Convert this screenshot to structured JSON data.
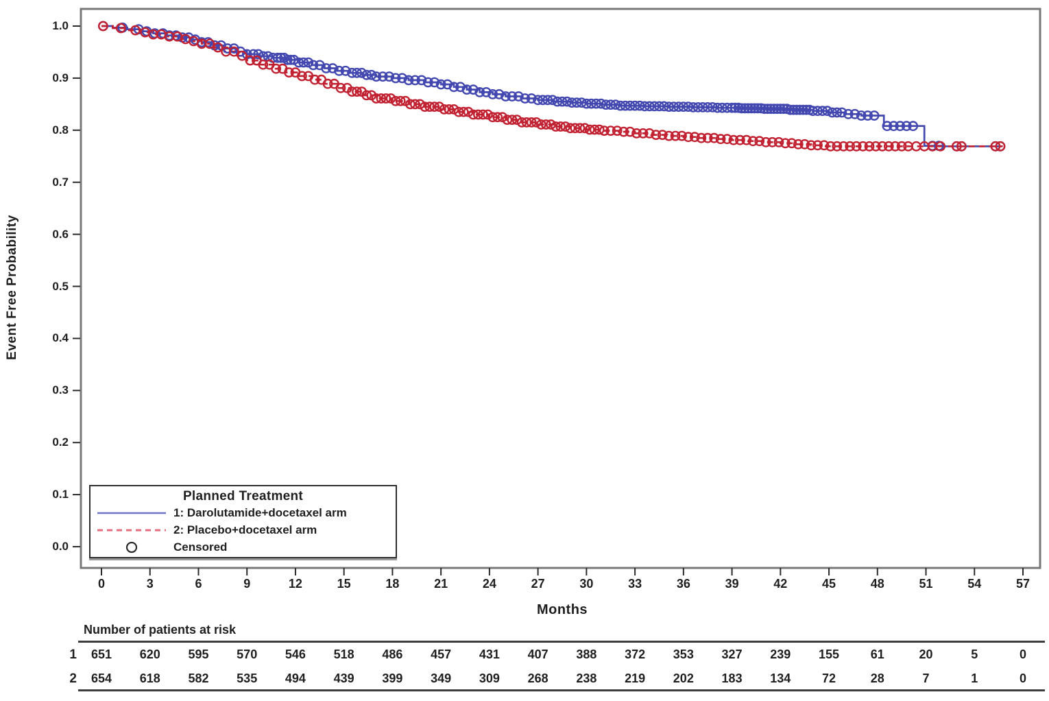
{
  "figure": {
    "y_axis_title": "Event Free Probability",
    "x_axis_title": "Months"
  },
  "legend": {
    "title": "Planned Treatment",
    "items": [
      {
        "label": "1: Darolutamide+docetaxel arm",
        "style": "solid-line",
        "swatch_color": "#6f73c4"
      },
      {
        "label": "2: Placebo+docetaxel arm",
        "style": "dashed-line",
        "swatch_color": "#e4707f"
      },
      {
        "label": "Censored",
        "style": "open-circle",
        "swatch_color": "#2a2a2a"
      }
    ]
  },
  "chart_data": {
    "type": "line",
    "variant": "kaplan-meier-step",
    "title": "",
    "xlabel": "Months",
    "ylabel": "Event Free Probability",
    "xlim": [
      0,
      57
    ],
    "ylim": [
      0.0,
      1.0
    ],
    "x_ticks": [
      0,
      3,
      6,
      9,
      12,
      15,
      18,
      21,
      24,
      27,
      30,
      33,
      36,
      39,
      42,
      45,
      48,
      51,
      54,
      57
    ],
    "y_ticks": [
      0.0,
      0.1,
      0.2,
      0.3,
      0.4,
      0.5,
      0.6,
      0.7,
      0.8,
      0.9,
      1.0
    ],
    "grid": false,
    "legend_position": "inside-bottom-left",
    "series": [
      {
        "name": "1: Darolutamide+docetaxel arm",
        "color": "#4348b0",
        "line": "solid",
        "steps": [
          [
            0,
            1.0
          ],
          [
            0.7,
            0.997
          ],
          [
            1.6,
            0.994
          ],
          [
            2.4,
            0.99
          ],
          [
            3.2,
            0.986
          ],
          [
            4.0,
            0.982
          ],
          [
            4.8,
            0.978
          ],
          [
            5.5,
            0.974
          ],
          [
            6.2,
            0.969
          ],
          [
            6.9,
            0.963
          ],
          [
            7.6,
            0.957
          ],
          [
            8.3,
            0.951
          ],
          [
            9.0,
            0.946
          ],
          [
            9.8,
            0.942
          ],
          [
            10.6,
            0.939
          ],
          [
            11.4,
            0.935
          ],
          [
            12.2,
            0.93
          ],
          [
            13.0,
            0.925
          ],
          [
            13.8,
            0.919
          ],
          [
            14.6,
            0.914
          ],
          [
            15.4,
            0.91
          ],
          [
            16.2,
            0.906
          ],
          [
            17.0,
            0.903
          ],
          [
            18.0,
            0.9
          ],
          [
            19.0,
            0.896
          ],
          [
            20.0,
            0.892
          ],
          [
            21.0,
            0.888
          ],
          [
            21.8,
            0.883
          ],
          [
            22.6,
            0.878
          ],
          [
            23.4,
            0.873
          ],
          [
            24.2,
            0.869
          ],
          [
            25.0,
            0.865
          ],
          [
            26.0,
            0.861
          ],
          [
            27.0,
            0.858
          ],
          [
            28.0,
            0.855
          ],
          [
            29.0,
            0.853
          ],
          [
            30.0,
            0.851
          ],
          [
            31.0,
            0.849
          ],
          [
            32.0,
            0.847
          ],
          [
            33.5,
            0.846
          ],
          [
            35.0,
            0.845
          ],
          [
            36.5,
            0.844
          ],
          [
            38.0,
            0.843
          ],
          [
            39.5,
            0.842
          ],
          [
            41.0,
            0.841
          ],
          [
            42.5,
            0.839
          ],
          [
            44.0,
            0.837
          ],
          [
            45.0,
            0.834
          ],
          [
            46.0,
            0.831
          ],
          [
            47.0,
            0.828
          ],
          [
            48.4,
            0.808
          ],
          [
            50.9,
            0.77
          ],
          [
            52.0,
            0.769
          ],
          [
            55.7,
            0.768
          ]
        ],
        "censor_times": [
          0.1,
          1.3,
          2.3,
          2.8,
          3.3,
          3.8,
          4.2,
          4.6,
          5.0,
          5.4,
          5.8,
          6.2,
          6.6,
          7.0,
          7.4,
          7.8,
          8.2,
          8.6,
          9.0,
          9.4,
          9.7,
          10.0,
          10.3,
          10.6,
          10.9,
          11.1,
          11.3,
          11.5,
          11.7,
          11.9,
          12.2,
          12.5,
          12.8,
          13.1,
          13.5,
          13.9,
          14.3,
          14.7,
          15.1,
          15.5,
          15.8,
          16.1,
          16.4,
          16.7,
          17.0,
          17.4,
          17.8,
          18.2,
          18.6,
          19.0,
          19.4,
          19.8,
          20.2,
          20.6,
          21.0,
          21.4,
          21.8,
          22.2,
          22.6,
          23.0,
          23.4,
          23.8,
          24.2,
          24.6,
          25.0,
          25.4,
          25.8,
          26.2,
          26.6,
          27.0,
          27.3,
          27.6,
          27.9,
          28.2,
          28.5,
          28.8,
          29.1,
          29.4,
          29.7,
          30.0,
          30.3,
          30.6,
          30.9,
          31.2,
          31.5,
          31.8,
          32.1,
          32.4,
          32.7,
          33.0,
          33.3,
          33.6,
          33.9,
          34.2,
          34.5,
          34.8,
          35.1,
          35.4,
          35.7,
          36.0,
          36.3,
          36.6,
          36.9,
          37.2,
          37.5,
          37.8,
          38.1,
          38.4,
          38.7,
          39.0,
          39.2,
          39.4,
          39.6,
          39.8,
          40.0,
          40.2,
          40.4,
          40.6,
          40.8,
          41.0,
          41.2,
          41.4,
          41.6,
          41.8,
          42.0,
          42.2,
          42.4,
          42.6,
          42.8,
          43.0,
          43.2,
          43.4,
          43.6,
          43.8,
          44.0,
          44.3,
          44.6,
          44.9,
          45.2,
          45.5,
          45.8,
          46.2,
          46.6,
          47.0,
          47.4,
          47.8,
          48.6,
          49.0,
          49.4,
          49.8,
          50.2,
          51.4,
          51.8,
          52.9,
          53.2,
          55.3,
          55.6
        ]
      },
      {
        "name": "2: Placebo+docetaxel arm",
        "color": "#c12131",
        "line": "dashed",
        "steps": [
          [
            0,
            1.0
          ],
          [
            0.7,
            0.996
          ],
          [
            1.6,
            0.992
          ],
          [
            2.4,
            0.988
          ],
          [
            3.2,
            0.984
          ],
          [
            4.0,
            0.98
          ],
          [
            4.8,
            0.975
          ],
          [
            5.5,
            0.971
          ],
          [
            6.2,
            0.966
          ],
          [
            6.9,
            0.959
          ],
          [
            7.6,
            0.951
          ],
          [
            8.3,
            0.943
          ],
          [
            9.0,
            0.934
          ],
          [
            9.8,
            0.926
          ],
          [
            10.6,
            0.918
          ],
          [
            11.4,
            0.911
          ],
          [
            12.2,
            0.904
          ],
          [
            13.0,
            0.897
          ],
          [
            13.8,
            0.889
          ],
          [
            14.6,
            0.881
          ],
          [
            15.4,
            0.874
          ],
          [
            16.2,
            0.867
          ],
          [
            17.0,
            0.861
          ],
          [
            18.0,
            0.856
          ],
          [
            19.0,
            0.85
          ],
          [
            20.0,
            0.845
          ],
          [
            21.0,
            0.84
          ],
          [
            22.0,
            0.835
          ],
          [
            23.0,
            0.83
          ],
          [
            24.0,
            0.825
          ],
          [
            25.0,
            0.82
          ],
          [
            26.0,
            0.815
          ],
          [
            27.0,
            0.811
          ],
          [
            28.0,
            0.807
          ],
          [
            29.0,
            0.804
          ],
          [
            30.0,
            0.801
          ],
          [
            31.0,
            0.799
          ],
          [
            32.0,
            0.797
          ],
          [
            33.0,
            0.794
          ],
          [
            34.0,
            0.791
          ],
          [
            35.0,
            0.789
          ],
          [
            36.0,
            0.787
          ],
          [
            37.0,
            0.785
          ],
          [
            38.0,
            0.783
          ],
          [
            39.0,
            0.781
          ],
          [
            40.0,
            0.779
          ],
          [
            41.0,
            0.777
          ],
          [
            42.0,
            0.775
          ],
          [
            43.0,
            0.773
          ],
          [
            43.9,
            0.771
          ],
          [
            44.8,
            0.769
          ],
          [
            55.7,
            0.768
          ]
        ],
        "censor_times": [
          0.1,
          1.2,
          2.1,
          2.7,
          3.2,
          3.7,
          4.2,
          4.7,
          5.2,
          5.7,
          6.2,
          6.7,
          7.2,
          7.7,
          8.2,
          8.7,
          9.2,
          9.6,
          10.0,
          10.4,
          10.8,
          11.2,
          11.6,
          12.0,
          12.4,
          12.8,
          13.2,
          13.6,
          14.0,
          14.4,
          14.8,
          15.2,
          15.5,
          15.8,
          16.1,
          16.4,
          16.7,
          17.0,
          17.3,
          17.6,
          17.9,
          18.2,
          18.5,
          18.8,
          19.1,
          19.4,
          19.7,
          20.0,
          20.3,
          20.6,
          20.9,
          21.2,
          21.5,
          21.8,
          22.1,
          22.4,
          22.7,
          23.0,
          23.3,
          23.6,
          23.9,
          24.2,
          24.5,
          24.8,
          25.1,
          25.4,
          25.7,
          26.0,
          26.3,
          26.6,
          26.9,
          27.2,
          27.5,
          27.8,
          28.1,
          28.4,
          28.7,
          29.0,
          29.3,
          29.6,
          29.9,
          30.2,
          30.5,
          30.8,
          31.1,
          31.5,
          31.9,
          32.3,
          32.7,
          33.1,
          33.5,
          33.9,
          34.3,
          34.7,
          35.1,
          35.5,
          35.9,
          36.3,
          36.7,
          37.1,
          37.5,
          37.9,
          38.3,
          38.7,
          39.1,
          39.5,
          39.9,
          40.3,
          40.7,
          41.1,
          41.5,
          41.9,
          42.3,
          42.7,
          43.1,
          43.5,
          43.9,
          44.3,
          44.7,
          45.1,
          45.5,
          45.9,
          46.3,
          46.7,
          47.1,
          47.5,
          47.9,
          48.3,
          48.7,
          49.1,
          49.5,
          49.9,
          50.4,
          50.9,
          51.4,
          51.9,
          52.9,
          53.2,
          55.3,
          55.6
        ]
      }
    ],
    "risk_table": {
      "header": "Number of patients at risk",
      "months": [
        0,
        3,
        6,
        9,
        12,
        15,
        18,
        21,
        24,
        27,
        30,
        33,
        36,
        39,
        42,
        45,
        48,
        51,
        54,
        57
      ],
      "rows": [
        {
          "label": "1",
          "values": [
            651,
            620,
            595,
            570,
            546,
            518,
            486,
            457,
            431,
            407,
            388,
            372,
            353,
            327,
            239,
            155,
            61,
            20,
            5,
            0
          ]
        },
        {
          "label": "2",
          "values": [
            654,
            618,
            582,
            535,
            494,
            439,
            399,
            349,
            309,
            268,
            238,
            219,
            202,
            183,
            134,
            72,
            28,
            7,
            1,
            0
          ]
        }
      ]
    }
  }
}
